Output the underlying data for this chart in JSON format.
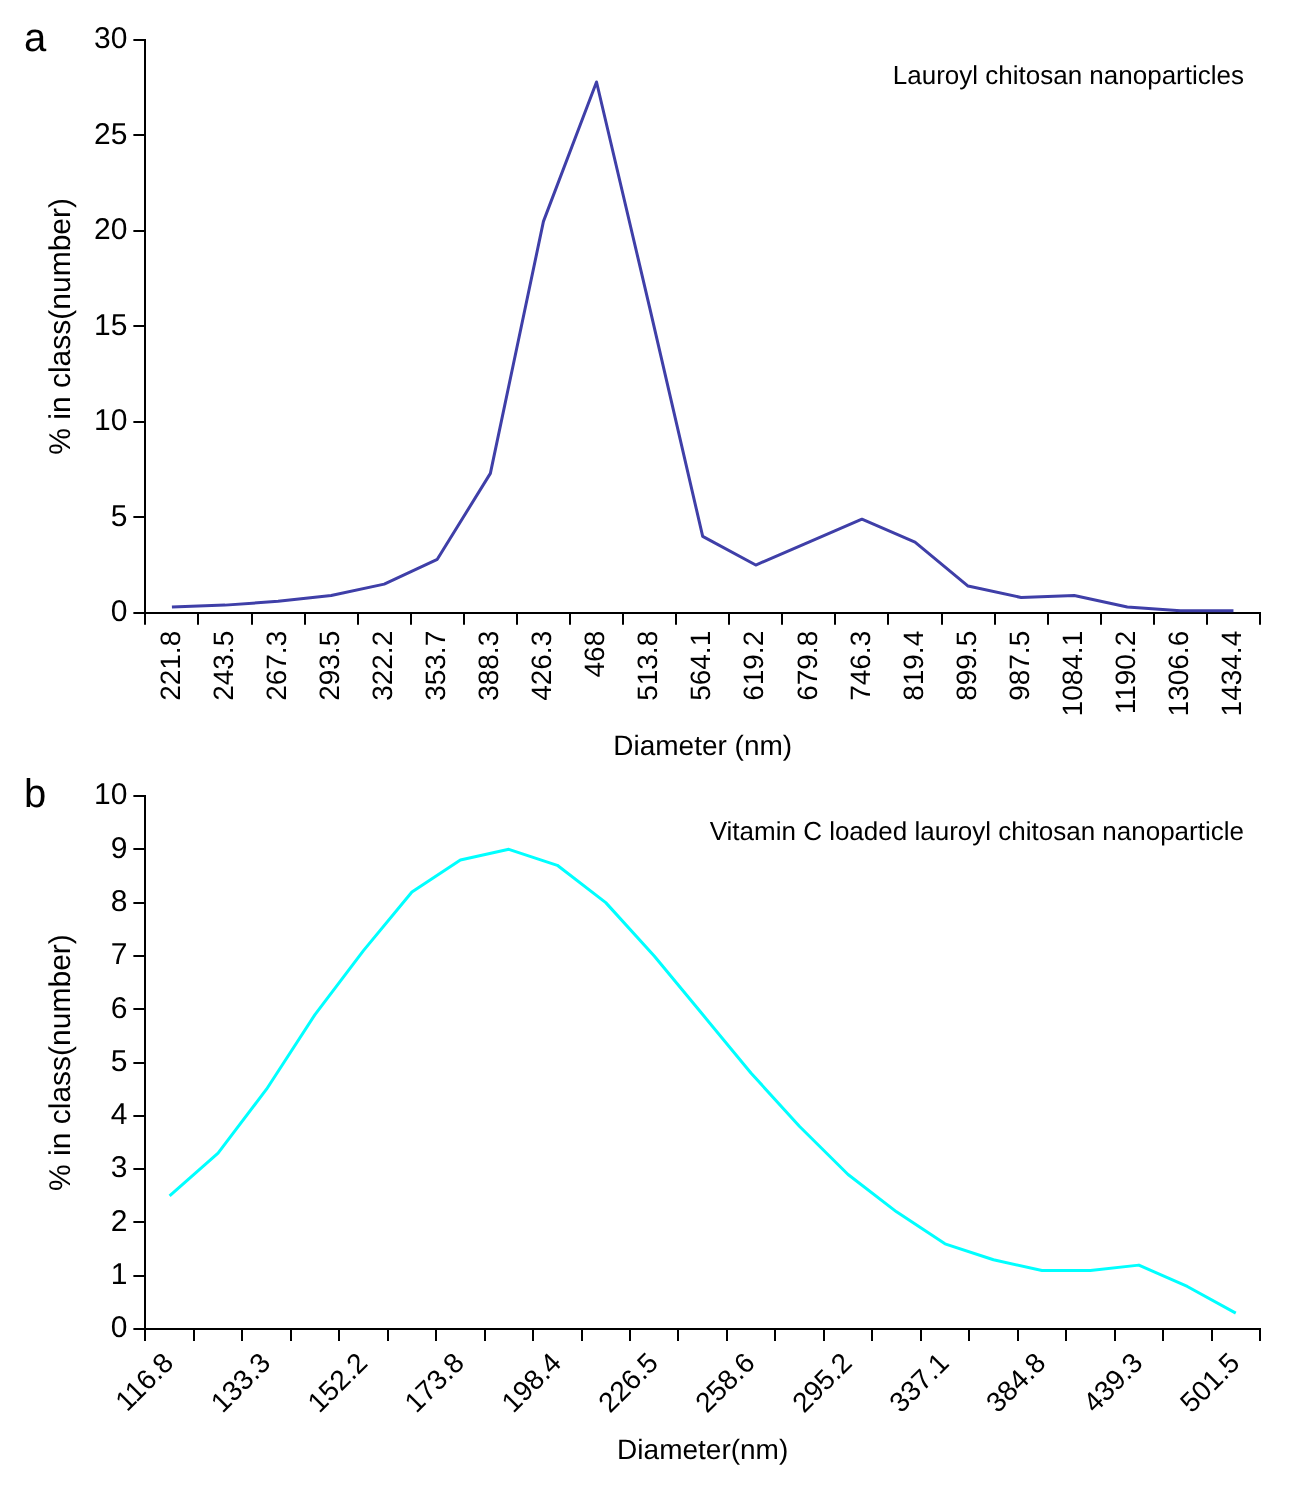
{
  "chart_data": [
    {
      "type": "line",
      "title": "Lauroyl chitosan nanoparticles",
      "xlabel": "Diameter (nm)",
      "ylabel": "% in class(number)",
      "annotations": [
        "a"
      ],
      "categories": [
        "221.8",
        "243.5",
        "267.3",
        "293.5",
        "322.2",
        "353.7",
        "388.3",
        "426.3",
        "468",
        "513.8",
        "564.1",
        "619.2",
        "679.8",
        "746.3",
        "819.4",
        "899.5",
        "987.5",
        "1084.1",
        "1190.2",
        "1306.6",
        "1434.4"
      ],
      "series": [
        {
          "color": "#3f3fa8",
          "values": [
            0.3,
            0.4,
            0.6,
            0.9,
            1.5,
            2.8,
            7.3,
            20.5,
            27.8,
            16,
            4.0,
            2.5,
            3.7,
            4.9,
            3.7,
            1.4,
            0.8,
            0.9,
            0.3,
            0.1,
            0.1
          ]
        }
      ],
      "ylim": [
        0,
        30
      ],
      "yticks": [
        0,
        5,
        10,
        15,
        20,
        25,
        30
      ],
      "grid": false,
      "legend": false,
      "marker": "none",
      "line_style": "solid"
    },
    {
      "type": "line",
      "title": "Vitamin C loaded lauroyl chitosan nanoparticle",
      "xlabel": "Diameter(nm)",
      "ylabel": "% in class(number)",
      "annotations": [
        "b"
      ],
      "categories": [
        "116.8",
        null,
        "133.3",
        null,
        "152.2",
        null,
        "173.8",
        null,
        "198.4",
        null,
        "226.5",
        null,
        "258.6",
        null,
        "295.2",
        null,
        "337.1",
        null,
        "384.8",
        null,
        "439.3",
        null,
        "501.5"
      ],
      "series": [
        {
          "color": "#00ffff",
          "values": [
            2.5,
            3.3,
            4.5,
            5.9,
            7.1,
            8.2,
            8.8,
            9.0,
            8.7,
            8.0,
            7.0,
            5.9,
            4.8,
            3.8,
            2.9,
            2.2,
            1.6,
            1.3,
            1.1,
            1.1,
            1.2,
            0.8,
            0.3
          ]
        }
      ],
      "ylim": [
        0,
        10
      ],
      "yticks": [
        0,
        1,
        2,
        3,
        4,
        5,
        6,
        7,
        8,
        9,
        10
      ],
      "grid": false,
      "legend": false,
      "marker": "none",
      "line_style": "solid"
    }
  ]
}
